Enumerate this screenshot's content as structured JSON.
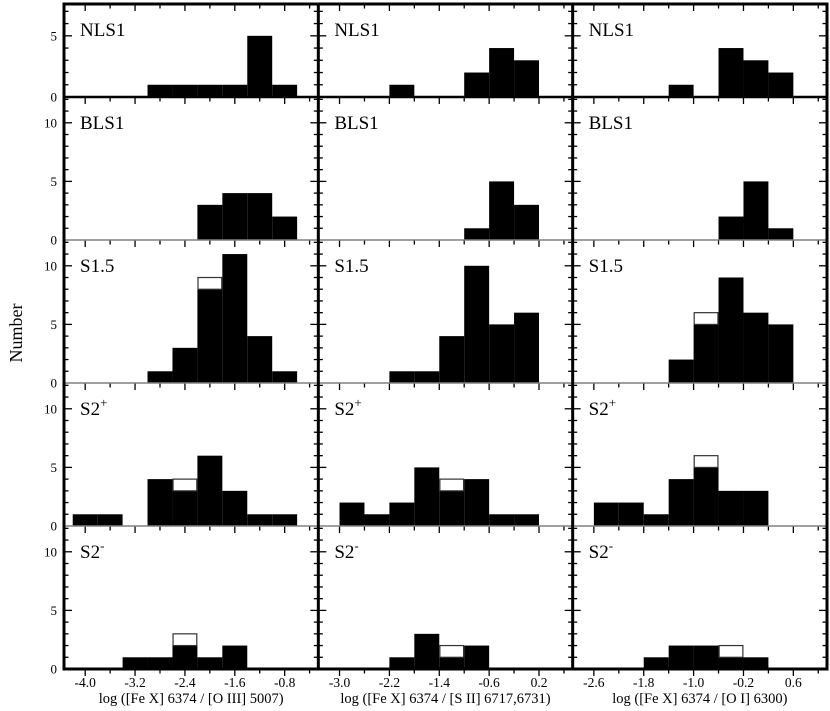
{
  "figure": {
    "background": "#ffffff",
    "bar_color": "#000000",
    "open_bar_border": "#333333",
    "axis_color": "#000000",
    "row_separator_color": "#808080"
  },
  "chart_data": {
    "type": "bar",
    "subtype": "histogram-grid-3x5",
    "title": "",
    "ylabel": "Number",
    "bin_width": 0.4,
    "x_minor_step": 0.4,
    "y_minor_step": 1,
    "grid": "off",
    "legend": "none",
    "rows": [
      {
        "label": "NLS1",
        "sup": "",
        "ymax": 7.6,
        "yticks": [
          0,
          5
        ]
      },
      {
        "label": "BLS1",
        "sup": "",
        "ymax": 12.2,
        "yticks": [
          0,
          5,
          10
        ]
      },
      {
        "label": "S1.5",
        "sup": "",
        "ymax": 12.2,
        "yticks": [
          0,
          5,
          10
        ]
      },
      {
        "label": "S2",
        "sup": "+",
        "ymax": 12.2,
        "yticks": [
          0,
          5,
          10
        ]
      },
      {
        "label": "S2",
        "sup": "-",
        "ymax": 12.2,
        "yticks": [
          0,
          5,
          10
        ]
      }
    ],
    "columns": [
      {
        "xlabel": "log ([Fe X] 6374 / [O III] 5007)",
        "xlim": [
          -4.34,
          -0.26
        ],
        "xticks": [
          -4.0,
          -3.2,
          -2.4,
          -1.6,
          -0.8
        ],
        "tick_labels": [
          "-4.0",
          "-3.2",
          "-2.4",
          "-1.6",
          "-0.8"
        ]
      },
      {
        "xlabel": "log ([Fe X] 6374 / [S II] 6717,6731)",
        "xlim": [
          -3.34,
          0.74
        ],
        "xticks": [
          -3.0,
          -2.2,
          -1.4,
          -0.6,
          0.2
        ],
        "tick_labels": [
          "-3.0",
          "-2.2",
          "-1.4",
          "-0.6",
          "0.2"
        ]
      },
      {
        "xlabel": "log ([Fe X] 6374 / [O I] 6300)",
        "xlim": [
          -2.94,
          1.14
        ],
        "xticks": [
          -2.6,
          -1.8,
          -1.0,
          -0.2,
          0.6
        ],
        "tick_labels": [
          "-2.6",
          "-1.8",
          "-1.0",
          "-0.2",
          "0.6"
        ]
      }
    ],
    "panels": [
      [
        [
          {
            "x": -3.0,
            "n": 1
          },
          {
            "x": -2.6,
            "n": 1
          },
          {
            "x": -2.2,
            "n": 1
          },
          {
            "x": -1.8,
            "n": 1
          },
          {
            "x": -1.4,
            "n": 5
          },
          {
            "x": -1.0,
            "n": 1
          }
        ],
        [
          {
            "x": -2.2,
            "n": 1
          },
          {
            "x": -1.0,
            "n": 2
          },
          {
            "x": -0.6,
            "n": 4
          },
          {
            "x": -0.2,
            "n": 3
          }
        ],
        [
          {
            "x": -1.4,
            "n": 1
          },
          {
            "x": -0.6,
            "n": 4
          },
          {
            "x": -0.2,
            "n": 3
          },
          {
            "x": 0.2,
            "n": 2
          }
        ]
      ],
      [
        [
          {
            "x": -2.2,
            "n": 3
          },
          {
            "x": -1.8,
            "n": 4
          },
          {
            "x": -1.4,
            "n": 4
          },
          {
            "x": -1.0,
            "n": 2
          }
        ],
        [
          {
            "x": -1.0,
            "n": 1
          },
          {
            "x": -0.6,
            "n": 5
          },
          {
            "x": -0.2,
            "n": 3
          }
        ],
        [
          {
            "x": -0.6,
            "n": 2
          },
          {
            "x": -0.2,
            "n": 5
          },
          {
            "x": 0.2,
            "n": 1
          }
        ]
      ],
      [
        [
          {
            "x": -3.0,
            "n": 1
          },
          {
            "x": -2.6,
            "n": 3
          },
          {
            "x": -2.2,
            "n": 8,
            "open": 9
          },
          {
            "x": -1.8,
            "n": 11
          },
          {
            "x": -1.4,
            "n": 4
          },
          {
            "x": -1.0,
            "n": 1
          }
        ],
        [
          {
            "x": -2.2,
            "n": 1
          },
          {
            "x": -1.8,
            "n": 1
          },
          {
            "x": -1.4,
            "n": 4
          },
          {
            "x": -1.0,
            "n": 10
          },
          {
            "x": -0.6,
            "n": 5
          },
          {
            "x": -0.2,
            "n": 6
          }
        ],
        [
          {
            "x": -1.4,
            "n": 2
          },
          {
            "x": -1.0,
            "n": 5,
            "open": 6
          },
          {
            "x": -0.6,
            "n": 9
          },
          {
            "x": -0.2,
            "n": 6
          },
          {
            "x": 0.2,
            "n": 5
          }
        ]
      ],
      [
        [
          {
            "x": -4.2,
            "n": 1
          },
          {
            "x": -3.8,
            "n": 1
          },
          {
            "x": -3.0,
            "n": 4
          },
          {
            "x": -2.6,
            "n": 3,
            "open": 4
          },
          {
            "x": -2.2,
            "n": 6
          },
          {
            "x": -1.8,
            "n": 3
          },
          {
            "x": -1.4,
            "n": 1
          },
          {
            "x": -1.0,
            "n": 1
          }
        ],
        [
          {
            "x": -3.0,
            "n": 2
          },
          {
            "x": -2.6,
            "n": 1
          },
          {
            "x": -2.2,
            "n": 2
          },
          {
            "x": -1.8,
            "n": 5
          },
          {
            "x": -1.4,
            "n": 3,
            "open": 4
          },
          {
            "x": -1.0,
            "n": 4
          },
          {
            "x": -0.6,
            "n": 1
          },
          {
            "x": -0.2,
            "n": 1
          }
        ],
        [
          {
            "x": -2.6,
            "n": 2
          },
          {
            "x": -2.2,
            "n": 2
          },
          {
            "x": -1.8,
            "n": 1
          },
          {
            "x": -1.4,
            "n": 4
          },
          {
            "x": -1.0,
            "n": 5,
            "open": 6
          },
          {
            "x": -0.6,
            "n": 3
          },
          {
            "x": -0.2,
            "n": 3
          }
        ]
      ],
      [
        [
          {
            "x": -3.4,
            "n": 1
          },
          {
            "x": -3.0,
            "n": 1
          },
          {
            "x": -2.6,
            "n": 2,
            "open": 3
          },
          {
            "x": -2.2,
            "n": 1
          },
          {
            "x": -1.8,
            "n": 2
          }
        ],
        [
          {
            "x": -2.2,
            "n": 1
          },
          {
            "x": -1.8,
            "n": 3
          },
          {
            "x": -1.4,
            "n": 1,
            "open": 2
          },
          {
            "x": -1.0,
            "n": 2
          }
        ],
        [
          {
            "x": -1.8,
            "n": 1
          },
          {
            "x": -1.4,
            "n": 2
          },
          {
            "x": -1.0,
            "n": 2
          },
          {
            "x": -0.6,
            "n": 1,
            "open": 2
          },
          {
            "x": -0.2,
            "n": 1
          }
        ]
      ]
    ]
  }
}
